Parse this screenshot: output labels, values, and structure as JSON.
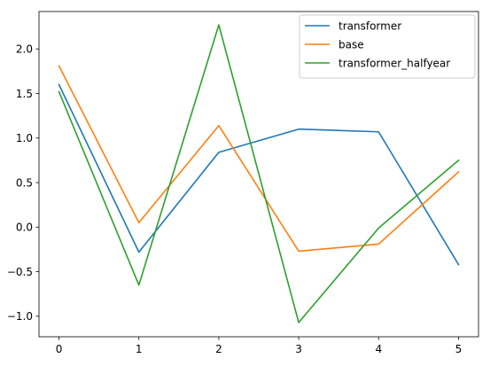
{
  "chart_data": {
    "type": "line",
    "title": "",
    "xlabel": "",
    "ylabel": "",
    "x": [
      0,
      1,
      2,
      3,
      4,
      5
    ],
    "xlim": [
      -0.25,
      5.25
    ],
    "ylim": [
      -1.23,
      2.42
    ],
    "xticks": [
      "0",
      "1",
      "2",
      "3",
      "4",
      "5"
    ],
    "yticks": [
      -1.0,
      -0.5,
      0.0,
      0.5,
      1.0,
      1.5,
      2.0
    ],
    "ytick_labels": [
      "−1.0",
      "−0.5",
      "0.0",
      "0.5",
      "1.0",
      "1.5",
      "2.0"
    ],
    "grid": false,
    "legend_position": "top-right",
    "series": [
      {
        "name": "transformer",
        "color": "#1f77b4",
        "values": [
          1.6,
          -0.28,
          0.84,
          1.1,
          1.07,
          -0.42
        ]
      },
      {
        "name": "base",
        "color": "#ff7f0e",
        "values": [
          1.81,
          0.05,
          1.14,
          -0.27,
          -0.19,
          0.62
        ]
      },
      {
        "name": "transformer_halfyear",
        "color": "#2ca02c",
        "values": [
          1.52,
          -0.65,
          2.27,
          -1.07,
          -0.01,
          0.75
        ]
      }
    ]
  }
}
